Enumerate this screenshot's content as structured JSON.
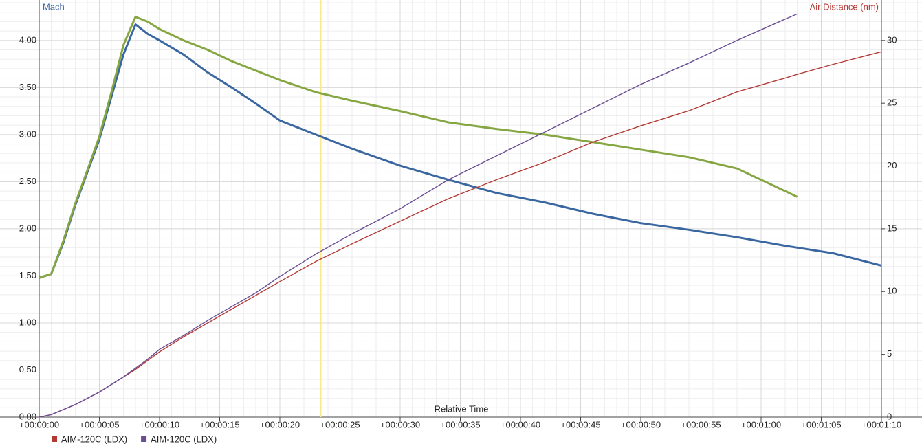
{
  "chart_data": {
    "type": "line",
    "y_label": "Mach",
    "y2_label": "Air Distance (nm)",
    "x_label": "Relative Time",
    "x": [
      0,
      1,
      2,
      3,
      4,
      5,
      6,
      7,
      8,
      9,
      10,
      12,
      14,
      16,
      18,
      20,
      23,
      26,
      30,
      34,
      38,
      42,
      46,
      50,
      54,
      58,
      62,
      63,
      66,
      70
    ],
    "xlim": [
      0,
      70
    ],
    "xticks": [
      {
        "value": 0,
        "label": "+00:00:00"
      },
      {
        "value": 5,
        "label": "+00:00:05"
      },
      {
        "value": 10,
        "label": "+00:00:10"
      },
      {
        "value": 15,
        "label": "+00:00:15"
      },
      {
        "value": 20,
        "label": "+00:00:20"
      },
      {
        "value": 25,
        "label": "+00:00:25"
      },
      {
        "value": 30,
        "label": "+00:00:30"
      },
      {
        "value": 35,
        "label": "+00:00:35"
      },
      {
        "value": 40,
        "label": "+00:00:40"
      },
      {
        "value": 45,
        "label": "+00:00:45"
      },
      {
        "value": 50,
        "label": "+00:00:50"
      },
      {
        "value": 55,
        "label": "+00:00:55"
      },
      {
        "value": 60,
        "label": "+00:01:00"
      },
      {
        "value": 65,
        "label": "+00:01:05"
      },
      {
        "value": 70,
        "label": "+00:01:10"
      }
    ],
    "ylim": [
      0,
      4.4
    ],
    "yticks": [
      {
        "value": 0,
        "label": "0.00"
      },
      {
        "value": 0.5,
        "label": "0.50"
      },
      {
        "value": 1,
        "label": "1.00"
      },
      {
        "value": 1.5,
        "label": "1.50"
      },
      {
        "value": 2,
        "label": "2.00"
      },
      {
        "value": 2.5,
        "label": "2.50"
      },
      {
        "value": 3,
        "label": "3.00"
      },
      {
        "value": 3.5,
        "label": "3.50"
      },
      {
        "value": 4,
        "label": "4.00"
      }
    ],
    "y2lim": [
      0,
      33
    ],
    "y2ticks": [
      0,
      5,
      10,
      15,
      20,
      25,
      30
    ],
    "grid": true,
    "cursor_x": 23.4,
    "series": [
      {
        "color": "#3a67a0",
        "values": [
          1.48,
          1.52,
          1.85,
          2.25,
          2.6,
          2.95,
          3.4,
          3.85,
          4.17,
          4.07,
          4.0,
          3.85,
          3.66,
          3.5,
          3.33,
          3.15,
          3.0,
          2.85,
          2.67,
          2.52,
          2.38,
          2.28,
          2.16,
          2.06,
          1.99,
          1.91,
          1.82,
          1.8,
          1.74,
          1.61
        ]
      },
      {
        "color": "#86a642",
        "values": [
          1.48,
          1.52,
          1.87,
          2.27,
          2.62,
          2.98,
          3.45,
          3.95,
          4.25,
          4.2,
          4.12,
          4.0,
          3.9,
          3.78,
          3.68,
          3.58,
          3.45,
          3.36,
          3.25,
          3.13,
          3.06,
          3.0,
          2.92,
          2.84,
          2.76,
          2.64,
          2.4,
          2.34,
          null,
          null
        ]
      },
      {
        "name": "AIM-120C (LDX)",
        "color": "#b23a35",
        "axis": "y2",
        "values": [
          0,
          0.2,
          0.6,
          1.0,
          1.5,
          2.0,
          2.6,
          3.2,
          3.8,
          4.5,
          5.2,
          6.4,
          7.5,
          8.6,
          9.7,
          10.8,
          12.4,
          13.8,
          15.6,
          17.4,
          18.9,
          20.3,
          21.9,
          23.2,
          24.4,
          25.9,
          27.0,
          27.3,
          28.1,
          29.1
        ]
      },
      {
        "name": "AIM-120C (LDX)",
        "color": "#6a4e94",
        "axis": "y2",
        "values": [
          0,
          0.2,
          0.6,
          1.0,
          1.5,
          2.0,
          2.6,
          3.2,
          3.9,
          4.6,
          5.4,
          6.5,
          7.7,
          8.8,
          9.9,
          11.2,
          13.0,
          14.6,
          16.6,
          18.9,
          20.8,
          22.7,
          24.6,
          26.5,
          28.2,
          30.0,
          31.7,
          32.1,
          null,
          null
        ]
      }
    ]
  }
}
